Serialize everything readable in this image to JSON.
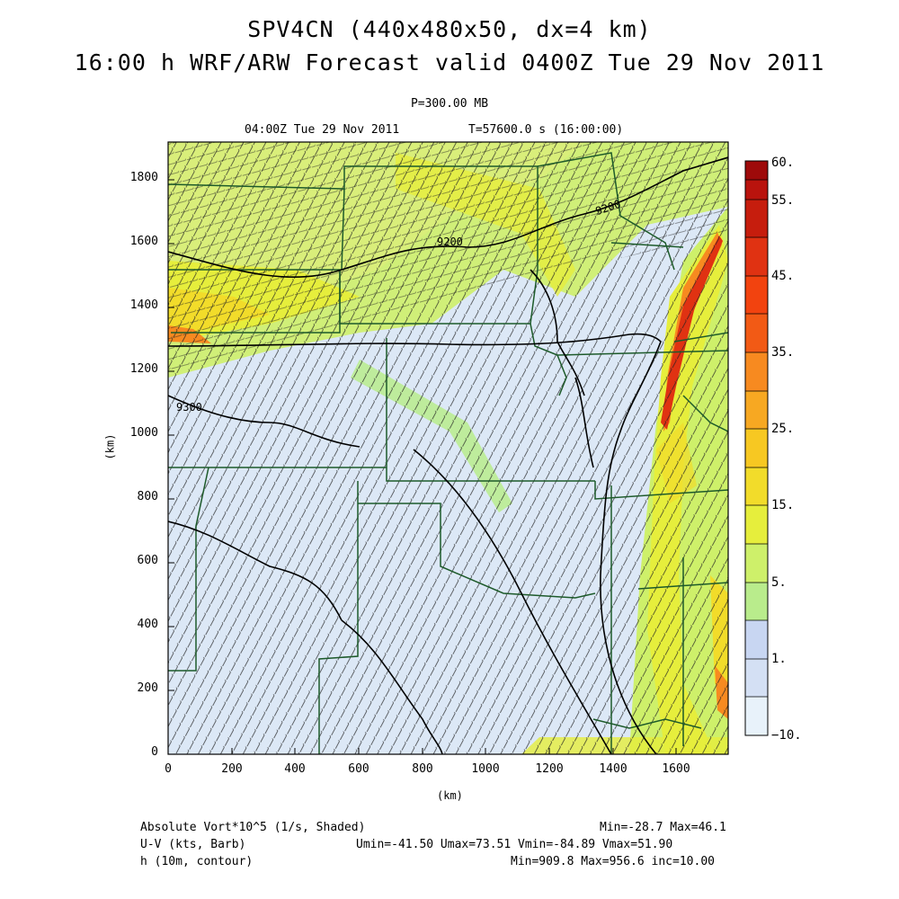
{
  "title": {
    "line1": "SPV4CN (440x480x50, dx=4 km)",
    "line2": "16:00 h WRF/ARW Forecast valid 0400Z Tue 29 Nov 2011"
  },
  "subtitle": {
    "pressure": "P=300.00 MB",
    "valid_time": "04:00Z Tue 29 Nov 2011",
    "sim_time": "T=57600.0 s (16:00:00)"
  },
  "axes": {
    "xlabel": "(km)",
    "ylabel": "(km)",
    "x_ticks": [
      "0",
      "200",
      "400",
      "600",
      "800",
      "1000",
      "1200",
      "1400",
      "1600"
    ],
    "y_ticks": [
      "0",
      "200",
      "400",
      "600",
      "800",
      "1000",
      "1200",
      "1400",
      "1600",
      "1800"
    ],
    "x_range_km": [
      0,
      1760
    ],
    "y_range_km": [
      0,
      1920
    ]
  },
  "colorbar": {
    "labels": [
      "60.",
      "55.",
      "45.",
      "35.",
      "25.",
      "15.",
      "5.",
      "1.",
      "−10."
    ],
    "colors": [
      "#9e0a0a",
      "#c61d0d",
      "#e03212",
      "#f25a15",
      "#f78a20",
      "#f7bd22",
      "#f2dc2a",
      "#e6ee3c",
      "#cef06a",
      "#b9ec8c",
      "#dde8f2",
      "#c8d6f2",
      "#dce8f6",
      "#e8f2fa"
    ]
  },
  "contour_labels": {
    "a": "9200",
    "b": "9200",
    "c": "9300"
  },
  "footer": {
    "field1": "Absolute Vort*10^5 (1/s, Shaded)",
    "field1_stats": "Min=-28.7 Max=46.1",
    "field2": "U-V (kts, Barb)",
    "field2_stats": "Umin=-41.50 Umax=73.51 Vmin=-84.89 Vmax=51.90",
    "field3": "h (10m, contour)",
    "field3_stats": "Min=909.8 Max=956.6 inc=10.00"
  },
  "colors": {
    "state_lines": "#1d5a2a",
    "contours": "#000000",
    "background_field": "#dce8f6"
  }
}
